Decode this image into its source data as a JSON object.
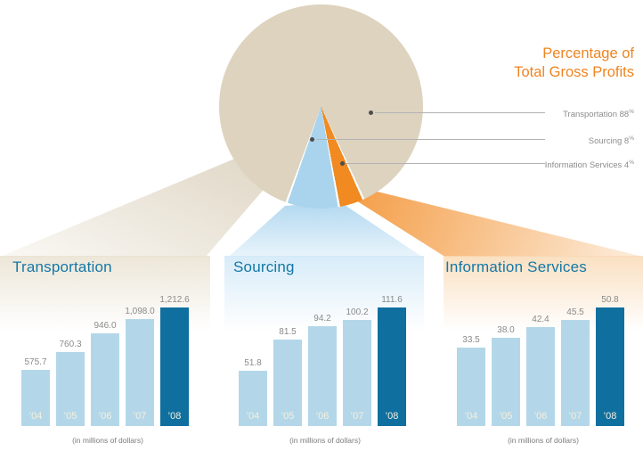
{
  "pie_panel": {
    "title_line1": "Percentage of",
    "title_line2": "Total Gross Profits",
    "legend": [
      {
        "label": "Transportation",
        "value": "88",
        "unit": "%"
      },
      {
        "label": "Sourcing",
        "value": "8",
        "unit": "%"
      },
      {
        "label": "Information Services",
        "value": "4",
        "unit": "%"
      }
    ]
  },
  "sections": [
    {
      "heading": "Transportation",
      "caption": "(in millions of dollars)"
    },
    {
      "heading": "Sourcing",
      "caption": "(in millions of dollars)"
    },
    {
      "heading": "Information Services",
      "caption": "(in millions of dollars)"
    }
  ],
  "colors": {
    "pie_transportation": "#ddd3bf",
    "pie_sourcing": "#aad4ee",
    "pie_information_services": "#f18a21",
    "bar_light": "#b3d7e9",
    "bar_dark": "#0f6f9f",
    "heading_teal": "#1478a6",
    "title_orange": "#ee8522",
    "label_gray": "#8c8c8c"
  },
  "chart_data": [
    {
      "type": "pie",
      "title": "Percentage of Total Gross Profits",
      "labels": [
        "Transportation",
        "Sourcing",
        "Information Services"
      ],
      "values": [
        88,
        8,
        4
      ],
      "unit": "%",
      "colors": [
        "#ddd3bf",
        "#aad4ee",
        "#f18a21"
      ],
      "legend_position": "right"
    },
    {
      "type": "bar",
      "title": "Transportation",
      "categories": [
        "’04",
        "’05",
        "’06",
        "’07",
        "’08"
      ],
      "values": [
        575.7,
        760.3,
        946.0,
        1098.0,
        1212.6
      ],
      "display_values": [
        "575.7",
        "760.3",
        "946.0",
        "1,098.0",
        "1,212.6"
      ],
      "ylabel": "(in millions of dollars)",
      "highlight_last_bar": true
    },
    {
      "type": "bar",
      "title": "Sourcing",
      "categories": [
        "’04",
        "’05",
        "’06",
        "’07",
        "’08"
      ],
      "values": [
        51.8,
        81.5,
        94.2,
        100.2,
        111.6
      ],
      "display_values": [
        "51.8",
        "81.5",
        "94.2",
        "100.2",
        "111.6"
      ],
      "ylabel": "(in millions of dollars)",
      "highlight_last_bar": true
    },
    {
      "type": "bar",
      "title": "Information Services",
      "categories": [
        "’04",
        "’05",
        "’06",
        "’07",
        "’08"
      ],
      "values": [
        33.5,
        38.0,
        42.4,
        45.5,
        50.8
      ],
      "display_values": [
        "33.5",
        "38.0",
        "42.4",
        "45.5",
        "50.8"
      ],
      "ylabel": "(in millions of dollars)",
      "highlight_last_bar": true
    }
  ]
}
